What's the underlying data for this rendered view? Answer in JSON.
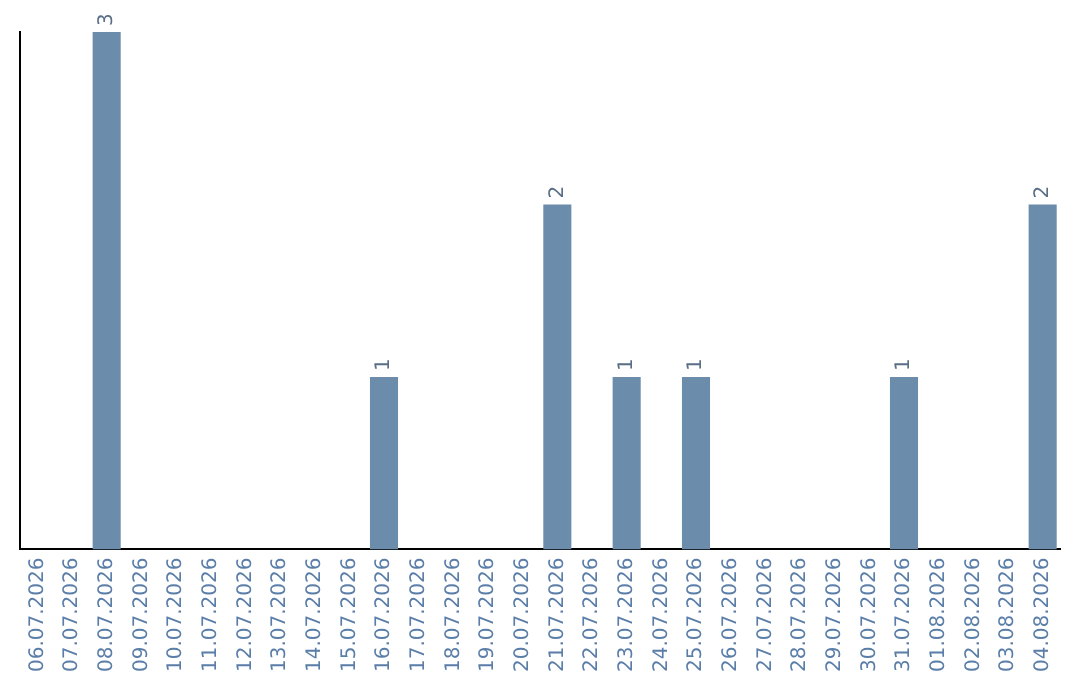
{
  "chart_data": {
    "type": "bar",
    "categories": [
      "06.07.2026",
      "07.07.2026",
      "08.07.2026",
      "09.07.2026",
      "10.07.2026",
      "11.07.2026",
      "12.07.2026",
      "13.07.2026",
      "14.07.2026",
      "15.07.2026",
      "16.07.2026",
      "17.07.2026",
      "18.07.2026",
      "19.07.2026",
      "20.07.2026",
      "21.07.2026",
      "22.07.2026",
      "23.07.2026",
      "24.07.2026",
      "25.07.2026",
      "26.07.2026",
      "27.07.2026",
      "28.07.2026",
      "29.07.2026",
      "30.07.2026",
      "31.07.2026",
      "01.08.2026",
      "02.08.2026",
      "03.08.2026",
      "04.08.2026"
    ],
    "values": [
      0,
      0,
      3,
      0,
      0,
      0,
      0,
      0,
      0,
      0,
      1,
      0,
      0,
      0,
      0,
      2,
      0,
      1,
      0,
      1,
      0,
      0,
      0,
      0,
      0,
      1,
      0,
      0,
      0,
      2
    ],
    "value_labels": [
      null,
      null,
      "3",
      null,
      null,
      null,
      null,
      null,
      null,
      null,
      "1",
      null,
      null,
      null,
      null,
      "2",
      null,
      "1",
      null,
      "1",
      null,
      null,
      null,
      null,
      null,
      "1",
      null,
      null,
      null,
      "2"
    ],
    "color": "#6b8cab",
    "grid": false,
    "legend": false
  }
}
